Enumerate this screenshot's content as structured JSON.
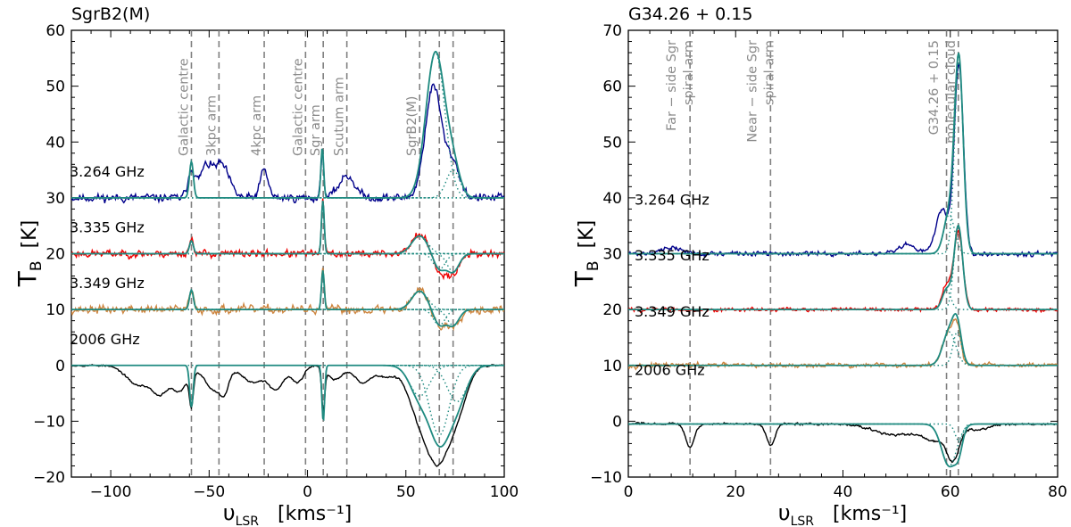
{
  "chart_data": [
    {
      "type": "line",
      "title": "SgrB2(M)",
      "xlabel_main": "υ",
      "xlabel_sub": "LSR",
      "xlabel_units": "[kms⁻¹]",
      "ylabel_main": "T",
      "ylabel_sub": "B",
      "ylabel_units": "[K]",
      "xlim": [
        -120,
        100
      ],
      "ylim": [
        -20,
        60
      ],
      "xticks": [
        -100,
        -50,
        0,
        50,
        100
      ],
      "yticks": [
        -20,
        -10,
        0,
        10,
        20,
        30,
        40,
        50,
        60
      ],
      "vlines": [
        -59,
        -45,
        -22,
        -1,
        8,
        20,
        57,
        67,
        74
      ],
      "annotations": [
        {
          "x": -59,
          "text": "Galactic centre"
        },
        {
          "x": -45,
          "text": "3kpc arm"
        },
        {
          "x": -22,
          "text": "4kpc arm"
        },
        {
          "x": -1,
          "text": "Galactic centre"
        },
        {
          "x": 8,
          "text": "Sgr arm"
        },
        {
          "x": 20,
          "text": "Scutum arm"
        },
        {
          "x": 57,
          "text": "SgrB2(M)"
        }
      ],
      "series": [
        {
          "name": "3.264 GHz",
          "color": "#00008b",
          "baseline": 30,
          "noise": 0.9,
          "seed": 11,
          "comps": [
            [
              -59,
              1.8,
              5
            ],
            [
              -52,
              3.0,
              5
            ],
            [
              -44,
              4.0,
              6
            ],
            [
              -22,
              2.0,
              5
            ],
            [
              7.5,
              0.8,
              8
            ],
            [
              20,
              4.0,
              4
            ],
            [
              64,
              4.2,
              20
            ],
            [
              74,
              3.5,
              6
            ]
          ],
          "fit": [
            [
              -59,
              1.0,
              6.5
            ],
            [
              7.5,
              0.7,
              9
            ],
            [
              65,
              4.8,
              26
            ],
            [
              74,
              3.5,
              5
            ]
          ]
        },
        {
          "name": "3.335 GHz",
          "color": "#ee0000",
          "baseline": 20,
          "noise": 0.8,
          "seed": 23,
          "comps": [
            [
              -59,
              1.2,
              2.5
            ],
            [
              7.8,
              0.7,
              9.5
            ],
            [
              57,
              4.0,
              3.5
            ],
            [
              67,
              3.0,
              -3.5
            ],
            [
              74,
              3.0,
              -3.5
            ]
          ],
          "fit": [
            [
              -59,
              1.0,
              2.3
            ],
            [
              7.8,
              0.7,
              9.5
            ],
            [
              57,
              4.0,
              3.2
            ],
            [
              67,
              3.0,
              -2.8
            ],
            [
              74,
              3.0,
              -3.2
            ]
          ]
        },
        {
          "name": "3.349 GHz",
          "color": "#cd853f",
          "baseline": 10,
          "noise": 0.9,
          "seed": 37,
          "comps": [
            [
              -59,
              1.2,
              3.0
            ],
            [
              7.8,
              0.7,
              7.0
            ],
            [
              57,
              4.0,
              3.5
            ],
            [
              67,
              3.0,
              -3.0
            ],
            [
              74,
              3.0,
              -2.8
            ]
          ],
          "fit": [
            [
              -59,
              1.0,
              3.5
            ],
            [
              7.8,
              0.7,
              7.0
            ],
            [
              57,
              4.0,
              3.3
            ],
            [
              67,
              3.0,
              -2.8
            ],
            [
              74,
              3.0,
              -2.8
            ]
          ]
        },
        {
          "name": "2006 GHz",
          "color": "#000000",
          "baseline": 0,
          "noise": 0.2,
          "seed": 53,
          "comps": [
            [
              -86,
              6,
              -3.5
            ],
            [
              -75,
              4,
              -4.5
            ],
            [
              -65,
              4,
              -4.5
            ],
            [
              -59,
              1.0,
              -6.0
            ],
            [
              -47,
              5,
              -4.5
            ],
            [
              -42,
              2,
              -2.5
            ],
            [
              -28,
              5,
              -3.0
            ],
            [
              -16,
              4,
              -4.2
            ],
            [
              -5,
              3,
              -3.0
            ],
            [
              8,
              0.8,
              -7.5
            ],
            [
              14,
              4,
              -2.5
            ],
            [
              28,
              4,
              -3.0
            ],
            [
              40,
              5,
              -2.0
            ],
            [
              58,
              6,
              -10.0
            ],
            [
              67,
              5,
              -13.0
            ],
            [
              76,
              5,
              -8.0
            ]
          ],
          "fit": [
            [
              -59,
              0.9,
              -7.5
            ],
            [
              8,
              0.7,
              -10
            ],
            [
              57,
              5,
              -5.5
            ],
            [
              67,
              5,
              -12.5
            ],
            [
              76,
              5,
              -6.5
            ]
          ]
        }
      ]
    },
    {
      "type": "line",
      "title": "G34.26 + 0.15",
      "xlabel_main": "υ",
      "xlabel_sub": "LSR",
      "xlabel_units": "[kms⁻¹]",
      "ylabel_main": "T",
      "ylabel_sub": "B",
      "ylabel_units": "[K]",
      "xlim": [
        0,
        80
      ],
      "ylim": [
        -10,
        70
      ],
      "xticks": [
        0,
        20,
        40,
        60,
        80
      ],
      "yticks": [
        -10,
        0,
        10,
        20,
        30,
        40,
        50,
        60,
        70
      ],
      "vlines": [
        11.5,
        26.5,
        59.3,
        61.5
      ],
      "annotations": [
        {
          "x": 11.5,
          "line1": "Far − side Sgr",
          "line2": "spiral arm"
        },
        {
          "x": 26.5,
          "line1": "Near − side Sgr",
          "line2": "spiral arm"
        },
        {
          "x": 60.4,
          "line1": "G34.26 + 0.15",
          "line2": "molecular cloud"
        }
      ],
      "series": [
        {
          "name": "3.264 GHz",
          "color": "#00008b",
          "baseline": 30,
          "noise": 0.5,
          "seed": 71,
          "comps": [
            [
              8,
              2,
              1.0
            ],
            [
              52,
              1.5,
              1.5
            ],
            [
              58.5,
              1.2,
              8.0
            ],
            [
              61.6,
              0.85,
              34.0
            ]
          ],
          "fit": [
            [
              59.8,
              1.0,
              7.0
            ],
            [
              61.6,
              0.8,
              34.5
            ]
          ]
        },
        {
          "name": "3.335 GHz",
          "color": "#ee0000",
          "baseline": 20,
          "noise": 0.4,
          "seed": 83,
          "comps": [
            [
              59.3,
              0.8,
              4.5
            ],
            [
              61.5,
              0.85,
              14.0
            ]
          ],
          "fit": [
            [
              59.3,
              0.8,
              3.5
            ],
            [
              61.5,
              0.8,
              15.0
            ]
          ]
        },
        {
          "name": "3.349 GHz",
          "color": "#cd853f",
          "baseline": 10,
          "noise": 0.5,
          "seed": 97,
          "comps": [
            [
              59.8,
              1.2,
              6.0
            ],
            [
              61.3,
              0.7,
              5.0
            ]
          ],
          "fit": [
            [
              59.8,
              1.2,
              6.0
            ],
            [
              61.3,
              0.8,
              6.0
            ]
          ]
        },
        {
          "name": "2006 GHz",
          "color": "#000000",
          "baseline": -0.5,
          "noise": 0.25,
          "seed": 103,
          "comps": [
            [
              11.5,
              0.8,
              -4.2
            ],
            [
              26.5,
              0.8,
              -3.8
            ],
            [
              50,
              4,
              -2.0
            ],
            [
              57,
              2,
              -2.5
            ],
            [
              60.5,
              1.2,
              -6.0
            ],
            [
              65,
              2,
              -1.0
            ]
          ],
          "fit": [
            [
              59.8,
              1.4,
              -7.5
            ],
            [
              61.6,
              0.7,
              -3.0
            ]
          ]
        }
      ]
    }
  ]
}
